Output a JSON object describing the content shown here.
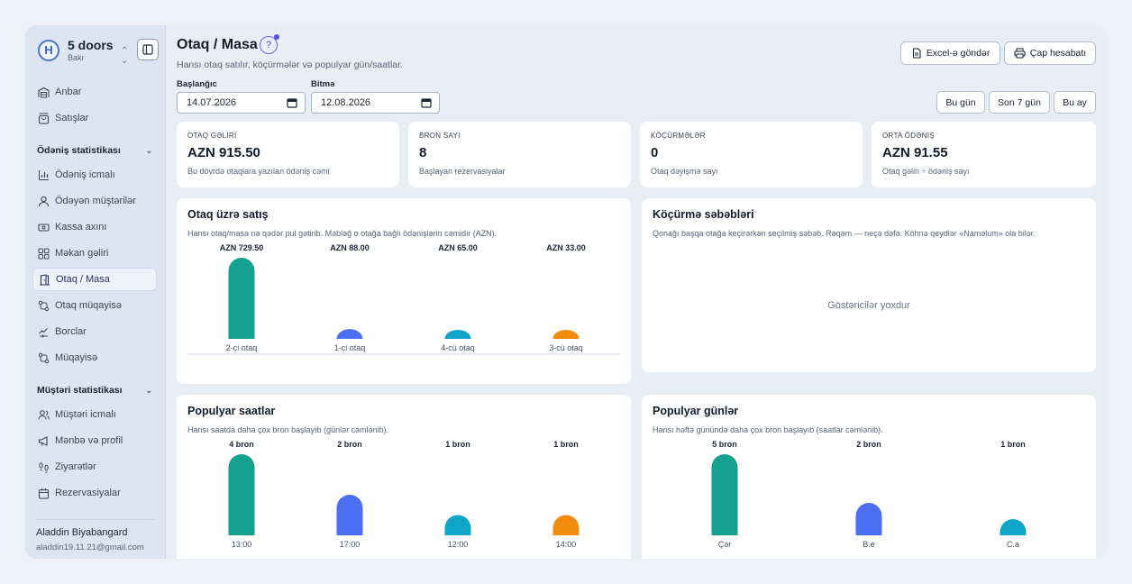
{
  "sidebar": {
    "brand_name": "5 doors",
    "brand_city": "Bakı",
    "logo_letter": "H",
    "items_top": [
      {
        "label": "Anbar",
        "icon": "warehouse-icon"
      },
      {
        "label": "Satışlar",
        "icon": "shopping-bag-icon"
      }
    ],
    "section1": "Ödəniş statistikası",
    "items_s1": [
      {
        "label": "Ödəniş icmalı",
        "icon": "bar-chart-icon"
      },
      {
        "label": "Ödəyən müştərilər",
        "icon": "user-icon"
      },
      {
        "label": "Kassa axını",
        "icon": "cash-icon"
      },
      {
        "label": "Məkan gəliri",
        "icon": "grid-icon"
      },
      {
        "label": "Otaq / Masa",
        "icon": "door-icon"
      },
      {
        "label": "Otaq müqayisə",
        "icon": "compare-icon"
      },
      {
        "label": "Borclar",
        "icon": "debt-icon"
      },
      {
        "label": "Müqayisə",
        "icon": "compare-icon"
      }
    ],
    "section2": "Müştəri statistikası",
    "items_s2": [
      {
        "label": "Müştəri icmalı",
        "icon": "users-icon"
      },
      {
        "label": "Mənbə və profil",
        "icon": "megaphone-icon"
      },
      {
        "label": "Ziyarətlər",
        "icon": "footprints-icon"
      },
      {
        "label": "Rezervasiyalar",
        "icon": "calendar-icon"
      }
    ],
    "user_name": "Aladdin Biyabangard",
    "user_email": "aladdin19.11.21@gmail.com"
  },
  "header": {
    "title": "Otaq / Masa",
    "subtitle": "Hansı otaq satılır, köçürmələr və populyar gün/saatlar.",
    "excel_button": "Excel-ə göndər",
    "print_button": "Çap hesabatı"
  },
  "filters": {
    "start_label": "Başlanğıc",
    "start_value": "14.07.2026",
    "end_label": "Bitmə",
    "end_value": "12.08.2026",
    "ranges": [
      "Bu gün",
      "Son 7 gün",
      "Bu ay"
    ]
  },
  "stats": [
    {
      "label": "OTAQ GƏLİRİ",
      "value": "AZN 915.50",
      "note": "Bu dövrdə otaqlara yazılan ödəniş cəmi"
    },
    {
      "label": "BRON SAYI",
      "value": "8",
      "note": "Başlayan rezervasiyalar"
    },
    {
      "label": "KÖÇÜRMƏLƏR",
      "value": "0",
      "note": "Otaq dəyişmə sayı"
    },
    {
      "label": "ORTA ÖDƏNİŞ",
      "value": "AZN 91.55",
      "note": "Otaq gəliri ÷ ödəniş sayı"
    }
  ],
  "cards": {
    "sales_title": "Otaq üzrə satış",
    "sales_desc": "Hansı otaq/masa nə qədər pul gətirib. Məbləğ o otağa bağlı ödənişlərin cəmidir (AZN).",
    "moves_title": "Köçürmə səbəbləri",
    "moves_desc": "Qonağı başqa otağa keçirərkən seçilmiş səbəb. Rəqəm — neçə dəfə. Köhnə qeydlər «Naməlum» ola bilər.",
    "moves_empty": "Göstəricilər yoxdur",
    "hours_title": "Populyar saatlar",
    "hours_desc": "Hansı saatda daha çox bron başlayıb (günlər cəmlənib).",
    "days_title": "Populyar günlər",
    "days_desc": "Hansı həftə günündə daha çox bron başlayıb (saatlar cəmlənib)."
  },
  "chart_data": [
    {
      "type": "bar",
      "title": "Otaq üzrə satış",
      "categories": [
        "2-ci otaq",
        "1-ci otaq",
        "4-cü otaq",
        "3-cü otaq"
      ],
      "values": [
        729.5,
        88.0,
        65.0,
        33.0
      ],
      "labels": [
        "AZN 729.50",
        "AZN 88.00",
        "AZN 65.00",
        "AZN 33.00"
      ],
      "colors": [
        "#13a08e",
        "#4c6ef0",
        "#0ea5c9",
        "#f28c0f"
      ],
      "ylim": [
        0,
        729.5
      ]
    },
    {
      "type": "bar",
      "title": "Populyar saatlar",
      "categories": [
        "13:00",
        "17:00",
        "12:00",
        "14:00"
      ],
      "values": [
        4,
        2,
        1,
        1
      ],
      "labels": [
        "4 bron",
        "2 bron",
        "1 bron",
        "1 bron"
      ],
      "colors": [
        "#13a08e",
        "#4c6ef0",
        "#0ea5c9",
        "#f28c0f"
      ],
      "ylim": [
        0,
        4
      ]
    },
    {
      "type": "bar",
      "title": "Populyar günlər",
      "categories": [
        "Çər",
        "B.e",
        "C.a"
      ],
      "values": [
        5,
        2,
        1
      ],
      "labels": [
        "5 bron",
        "2 bron",
        "1 bron"
      ],
      "colors": [
        "#13a08e",
        "#4c6ef0",
        "#0ea5c9"
      ],
      "ylim": [
        0,
        5
      ]
    }
  ]
}
